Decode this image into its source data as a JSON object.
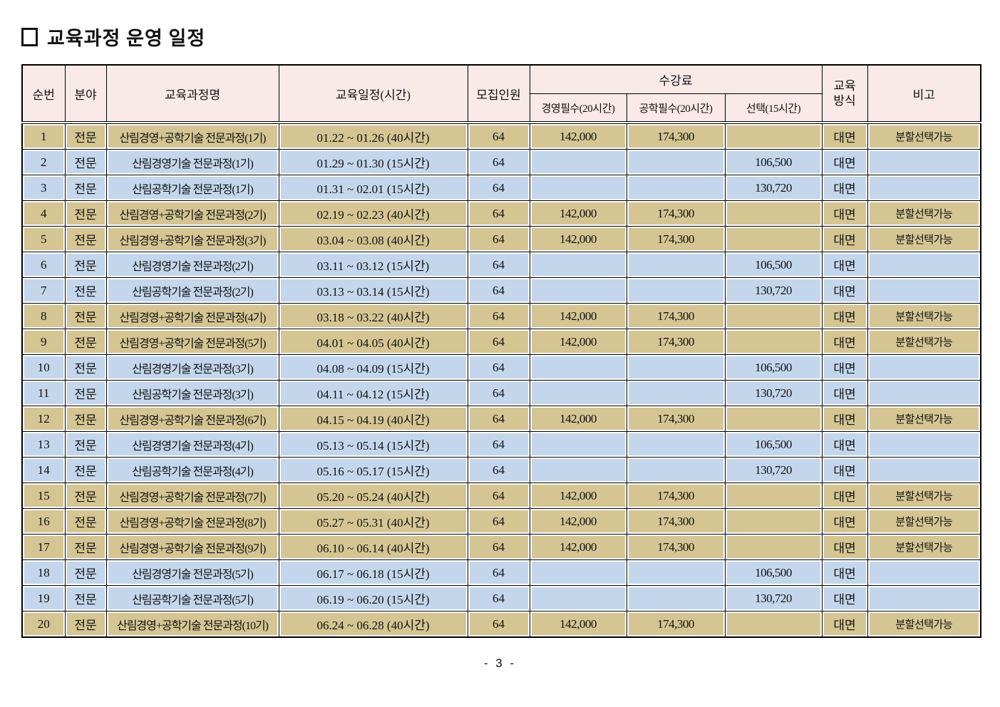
{
  "page": {
    "title": "교육과정 운영 일정",
    "footer": "- 3 -"
  },
  "colors": {
    "header_bg": "#F9EAE8",
    "row_tan": "#D4C593",
    "row_blue": "#C3D6EC",
    "border": "#000000"
  },
  "table": {
    "group_header": "수강료",
    "headers": {
      "no": "순번",
      "field": "분야",
      "course": "교육과정명",
      "schedule": "교육일정(시간)",
      "capacity": "모집인원",
      "fee_mgmt": "경영필수(20시간)",
      "fee_eng": "공학필수(20시간)",
      "fee_opt": "선택(15시간)",
      "method": "교육\n방식",
      "note": "비고"
    },
    "rows": [
      {
        "no": "1",
        "field": "전문",
        "course": "산림경영+공학기술 전문과정(1기)",
        "schedule": "01.22 ~ 01.26 (40시간)",
        "capacity": "64",
        "fee_mgmt": "142,000",
        "fee_eng": "174,300",
        "fee_opt": "",
        "method": "대면",
        "note": "분할선택가능",
        "type": "tan"
      },
      {
        "no": "2",
        "field": "전문",
        "course": "산림경영기술 전문과정(1기)",
        "schedule": "01.29 ~ 01.30 (15시간)",
        "capacity": "64",
        "fee_mgmt": "",
        "fee_eng": "",
        "fee_opt": "106,500",
        "method": "대면",
        "note": "",
        "type": "blue"
      },
      {
        "no": "3",
        "field": "전문",
        "course": "산림공학기술 전문과정(1기)",
        "schedule": "01.31 ~ 02.01 (15시간)",
        "capacity": "64",
        "fee_mgmt": "",
        "fee_eng": "",
        "fee_opt": "130,720",
        "method": "대면",
        "note": "",
        "type": "blue"
      },
      {
        "no": "4",
        "field": "전문",
        "course": "산림경영+공학기술 전문과정(2기)",
        "schedule": "02.19 ~ 02.23 (40시간)",
        "capacity": "64",
        "fee_mgmt": "142,000",
        "fee_eng": "174,300",
        "fee_opt": "",
        "method": "대면",
        "note": "분할선택가능",
        "type": "tan"
      },
      {
        "no": "5",
        "field": "전문",
        "course": "산림경영+공학기술 전문과정(3기)",
        "schedule": "03.04 ~ 03.08 (40시간)",
        "capacity": "64",
        "fee_mgmt": "142,000",
        "fee_eng": "174,300",
        "fee_opt": "",
        "method": "대면",
        "note": "분할선택가능",
        "type": "tan"
      },
      {
        "no": "6",
        "field": "전문",
        "course": "산림경영기술 전문과정(2기)",
        "schedule": "03.11 ~ 03.12 (15시간)",
        "capacity": "64",
        "fee_mgmt": "",
        "fee_eng": "",
        "fee_opt": "106,500",
        "method": "대면",
        "note": "",
        "type": "blue"
      },
      {
        "no": "7",
        "field": "전문",
        "course": "산림공학기술 전문과정(2기)",
        "schedule": "03.13 ~ 03.14 (15시간)",
        "capacity": "64",
        "fee_mgmt": "",
        "fee_eng": "",
        "fee_opt": "130,720",
        "method": "대면",
        "note": "",
        "type": "blue"
      },
      {
        "no": "8",
        "field": "전문",
        "course": "산림경영+공학기술 전문과정(4기)",
        "schedule": "03.18 ~ 03.22 (40시간)",
        "capacity": "64",
        "fee_mgmt": "142,000",
        "fee_eng": "174,300",
        "fee_opt": "",
        "method": "대면",
        "note": "분할선택가능",
        "type": "tan"
      },
      {
        "no": "9",
        "field": "전문",
        "course": "산림경영+공학기술 전문과정(5기)",
        "schedule": "04.01 ~ 04.05 (40시간)",
        "capacity": "64",
        "fee_mgmt": "142,000",
        "fee_eng": "174,300",
        "fee_opt": "",
        "method": "대면",
        "note": "분할선택가능",
        "type": "tan"
      },
      {
        "no": "10",
        "field": "전문",
        "course": "산림경영기술 전문과정(3기)",
        "schedule": "04.08 ~ 04.09 (15시간)",
        "capacity": "64",
        "fee_mgmt": "",
        "fee_eng": "",
        "fee_opt": "106,500",
        "method": "대면",
        "note": "",
        "type": "blue"
      },
      {
        "no": "11",
        "field": "전문",
        "course": "산림공학기술 전문과정(3기)",
        "schedule": "04.11 ~ 04.12 (15시간)",
        "capacity": "64",
        "fee_mgmt": "",
        "fee_eng": "",
        "fee_opt": "130,720",
        "method": "대면",
        "note": "",
        "type": "blue"
      },
      {
        "no": "12",
        "field": "전문",
        "course": "산림경영+공학기술 전문과정(6기)",
        "schedule": "04.15 ~ 04.19 (40시간)",
        "capacity": "64",
        "fee_mgmt": "142,000",
        "fee_eng": "174,300",
        "fee_opt": "",
        "method": "대면",
        "note": "분할선택가능",
        "type": "tan"
      },
      {
        "no": "13",
        "field": "전문",
        "course": "산림경영기술 전문과정(4기)",
        "schedule": "05.13 ~ 05.14 (15시간)",
        "capacity": "64",
        "fee_mgmt": "",
        "fee_eng": "",
        "fee_opt": "106,500",
        "method": "대면",
        "note": "",
        "type": "blue"
      },
      {
        "no": "14",
        "field": "전문",
        "course": "산림공학기술 전문과정(4기)",
        "schedule": "05.16 ~ 05.17 (15시간)",
        "capacity": "64",
        "fee_mgmt": "",
        "fee_eng": "",
        "fee_opt": "130,720",
        "method": "대면",
        "note": "",
        "type": "blue"
      },
      {
        "no": "15",
        "field": "전문",
        "course": "산림경영+공학기술 전문과정(7기)",
        "schedule": "05.20 ~ 05.24 (40시간)",
        "capacity": "64",
        "fee_mgmt": "142,000",
        "fee_eng": "174,300",
        "fee_opt": "",
        "method": "대면",
        "note": "분할선택가능",
        "type": "tan"
      },
      {
        "no": "16",
        "field": "전문",
        "course": "산림경영+공학기술 전문과정(8기)",
        "schedule": "05.27 ~ 05.31 (40시간)",
        "capacity": "64",
        "fee_mgmt": "142,000",
        "fee_eng": "174,300",
        "fee_opt": "",
        "method": "대면",
        "note": "분할선택가능",
        "type": "tan"
      },
      {
        "no": "17",
        "field": "전문",
        "course": "산림경영+공학기술 전문과정(9기)",
        "schedule": "06.10 ~ 06.14 (40시간)",
        "capacity": "64",
        "fee_mgmt": "142,000",
        "fee_eng": "174,300",
        "fee_opt": "",
        "method": "대면",
        "note": "분할선택가능",
        "type": "tan"
      },
      {
        "no": "18",
        "field": "전문",
        "course": "산림경영기술 전문과정(5기)",
        "schedule": "06.17 ~ 06.18 (15시간)",
        "capacity": "64",
        "fee_mgmt": "",
        "fee_eng": "",
        "fee_opt": "106,500",
        "method": "대면",
        "note": "",
        "type": "blue"
      },
      {
        "no": "19",
        "field": "전문",
        "course": "산림공학기술 전문과정(5기)",
        "schedule": "06.19 ~ 06.20 (15시간)",
        "capacity": "64",
        "fee_mgmt": "",
        "fee_eng": "",
        "fee_opt": "130,720",
        "method": "대면",
        "note": "",
        "type": "blue"
      },
      {
        "no": "20",
        "field": "전문",
        "course": "산림경영+공학기술 전문과정(10기)",
        "schedule": "06.24 ~ 06.28 (40시간)",
        "capacity": "64",
        "fee_mgmt": "142,000",
        "fee_eng": "174,300",
        "fee_opt": "",
        "method": "대면",
        "note": "분할선택가능",
        "type": "tan"
      }
    ]
  }
}
